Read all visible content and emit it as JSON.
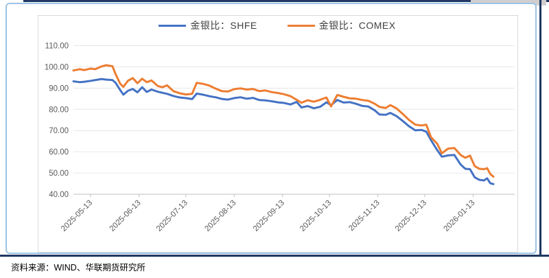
{
  "footer": {
    "source": "资料来源：WIND、华联期货研究所"
  },
  "chart_data": {
    "type": "line",
    "title": "",
    "xlabel": "",
    "ylabel": "",
    "ylim": [
      40,
      110
    ],
    "ytick_step": 10,
    "ytick_labels": [
      "40.00",
      "50.00",
      "60.00",
      "70.00",
      "80.00",
      "90.00",
      "100.00",
      "110.00"
    ],
    "grid": "horizontal",
    "legend_position": "top-center",
    "xticks": [
      "2025-05-13",
      "2025-06-13",
      "2025-07-13",
      "2025-08-13",
      "2025-09-13",
      "2025-10-13",
      "2025-11-13",
      "2025-12-13",
      "2026-01-13"
    ],
    "x": [
      "2025-05-02",
      "2025-05-06",
      "2025-05-09",
      "2025-05-13",
      "2025-05-16",
      "2025-05-20",
      "2025-05-23",
      "2025-05-27",
      "2025-05-29",
      "2025-06-01",
      "2025-06-03",
      "2025-06-06",
      "2025-06-09",
      "2025-06-12",
      "2025-06-15",
      "2025-06-18",
      "2025-06-21",
      "2025-06-25",
      "2025-06-28",
      "2025-07-01",
      "2025-07-05",
      "2025-07-09",
      "2025-07-13",
      "2025-07-17",
      "2025-07-20",
      "2025-07-24",
      "2025-07-28",
      "2025-08-01",
      "2025-08-05",
      "2025-08-09",
      "2025-08-13",
      "2025-08-17",
      "2025-08-21",
      "2025-08-25",
      "2025-08-29",
      "2025-09-02",
      "2025-09-06",
      "2025-09-10",
      "2025-09-14",
      "2025-09-18",
      "2025-09-22",
      "2025-09-25",
      "2025-09-29",
      "2025-10-03",
      "2025-10-07",
      "2025-10-11",
      "2025-10-14",
      "2025-10-18",
      "2025-10-22",
      "2025-10-26",
      "2025-10-30",
      "2025-11-03",
      "2025-11-07",
      "2025-11-11",
      "2025-11-14",
      "2025-11-18",
      "2025-11-21",
      "2025-11-25",
      "2025-11-29",
      "2025-12-03",
      "2025-12-07",
      "2025-12-11",
      "2025-12-14",
      "2025-12-17",
      "2025-12-21",
      "2025-12-24",
      "2025-12-28",
      "2026-01-01",
      "2026-01-05",
      "2026-01-08",
      "2026-01-11",
      "2026-01-14",
      "2026-01-17",
      "2026-01-20",
      "2026-01-22",
      "2026-01-24",
      "2026-01-26"
    ],
    "series": [
      {
        "name": "金银比：SHFE",
        "color": "#4472c4",
        "values": [
          93.2,
          92.8,
          93.0,
          93.4,
          93.8,
          94.3,
          94.0,
          93.8,
          92.5,
          89.0,
          86.9,
          88.8,
          89.6,
          88.0,
          90.4,
          88.2,
          89.3,
          88.3,
          87.8,
          87.3,
          86.3,
          85.6,
          85.3,
          84.8,
          87.4,
          86.9,
          86.2,
          85.7,
          84.9,
          84.6,
          85.3,
          85.7,
          85.0,
          85.4,
          84.4,
          84.2,
          83.8,
          83.3,
          83.0,
          82.3,
          83.5,
          80.9,
          81.5,
          80.5,
          81.2,
          83.3,
          82.0,
          84.4,
          83.2,
          83.4,
          82.6,
          81.6,
          81.3,
          79.5,
          77.6,
          77.4,
          78.3,
          76.8,
          74.5,
          72.0,
          70.1,
          70.3,
          69.5,
          65.5,
          60.8,
          57.7,
          58.3,
          58.5,
          54.0,
          52.0,
          51.8,
          48.0,
          46.8,
          46.5,
          47.5,
          45.2,
          44.8
        ]
      },
      {
        "name": "金银比：COMEX",
        "color": "#ed7d31",
        "values": [
          98.3,
          98.9,
          98.5,
          99.2,
          98.9,
          100.2,
          100.8,
          100.3,
          96.6,
          92.0,
          90.6,
          93.5,
          94.7,
          92.3,
          94.4,
          92.8,
          93.6,
          91.0,
          90.4,
          91.3,
          88.6,
          87.6,
          87.0,
          87.3,
          92.5,
          92.0,
          91.2,
          89.8,
          88.6,
          88.4,
          89.5,
          89.9,
          89.3,
          89.6,
          88.6,
          88.9,
          88.1,
          87.7,
          87.1,
          86.2,
          84.5,
          83.1,
          84.3,
          83.6,
          84.5,
          85.6,
          81.4,
          86.8,
          85.9,
          85.2,
          85.0,
          84.4,
          84.0,
          82.6,
          81.2,
          80.6,
          82.0,
          80.4,
          77.8,
          75.0,
          72.8,
          72.4,
          72.8,
          66.9,
          63.8,
          59.3,
          61.5,
          61.8,
          58.5,
          57.2,
          58.2,
          53.3,
          52.0,
          51.8,
          52.3,
          49.5,
          48.3
        ]
      }
    ]
  }
}
